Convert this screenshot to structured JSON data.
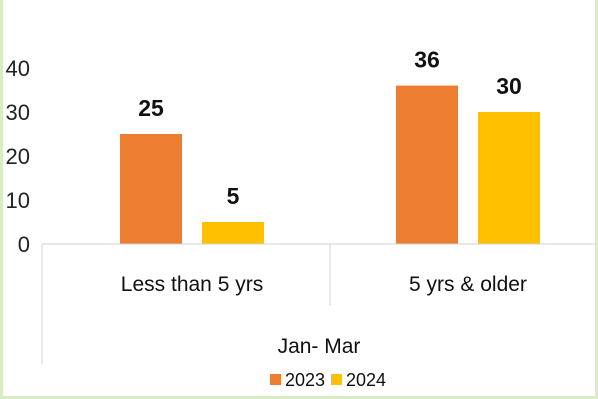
{
  "chart_data": {
    "type": "bar",
    "title": "",
    "xlabel": "Jan- Mar",
    "ylabel": "",
    "ylim": [
      0,
      40
    ],
    "yticks": [
      0,
      10,
      20,
      30,
      40
    ],
    "grid": false,
    "legend_position": "bottom",
    "categories": [
      "Less than 5 yrs",
      "5 yrs & older"
    ],
    "series": [
      {
        "name": "2023",
        "color": "#ED7D31",
        "values": [
          25,
          36
        ]
      },
      {
        "name": "2024",
        "color": "#FFC000",
        "values": [
          5,
          30
        ]
      }
    ]
  }
}
